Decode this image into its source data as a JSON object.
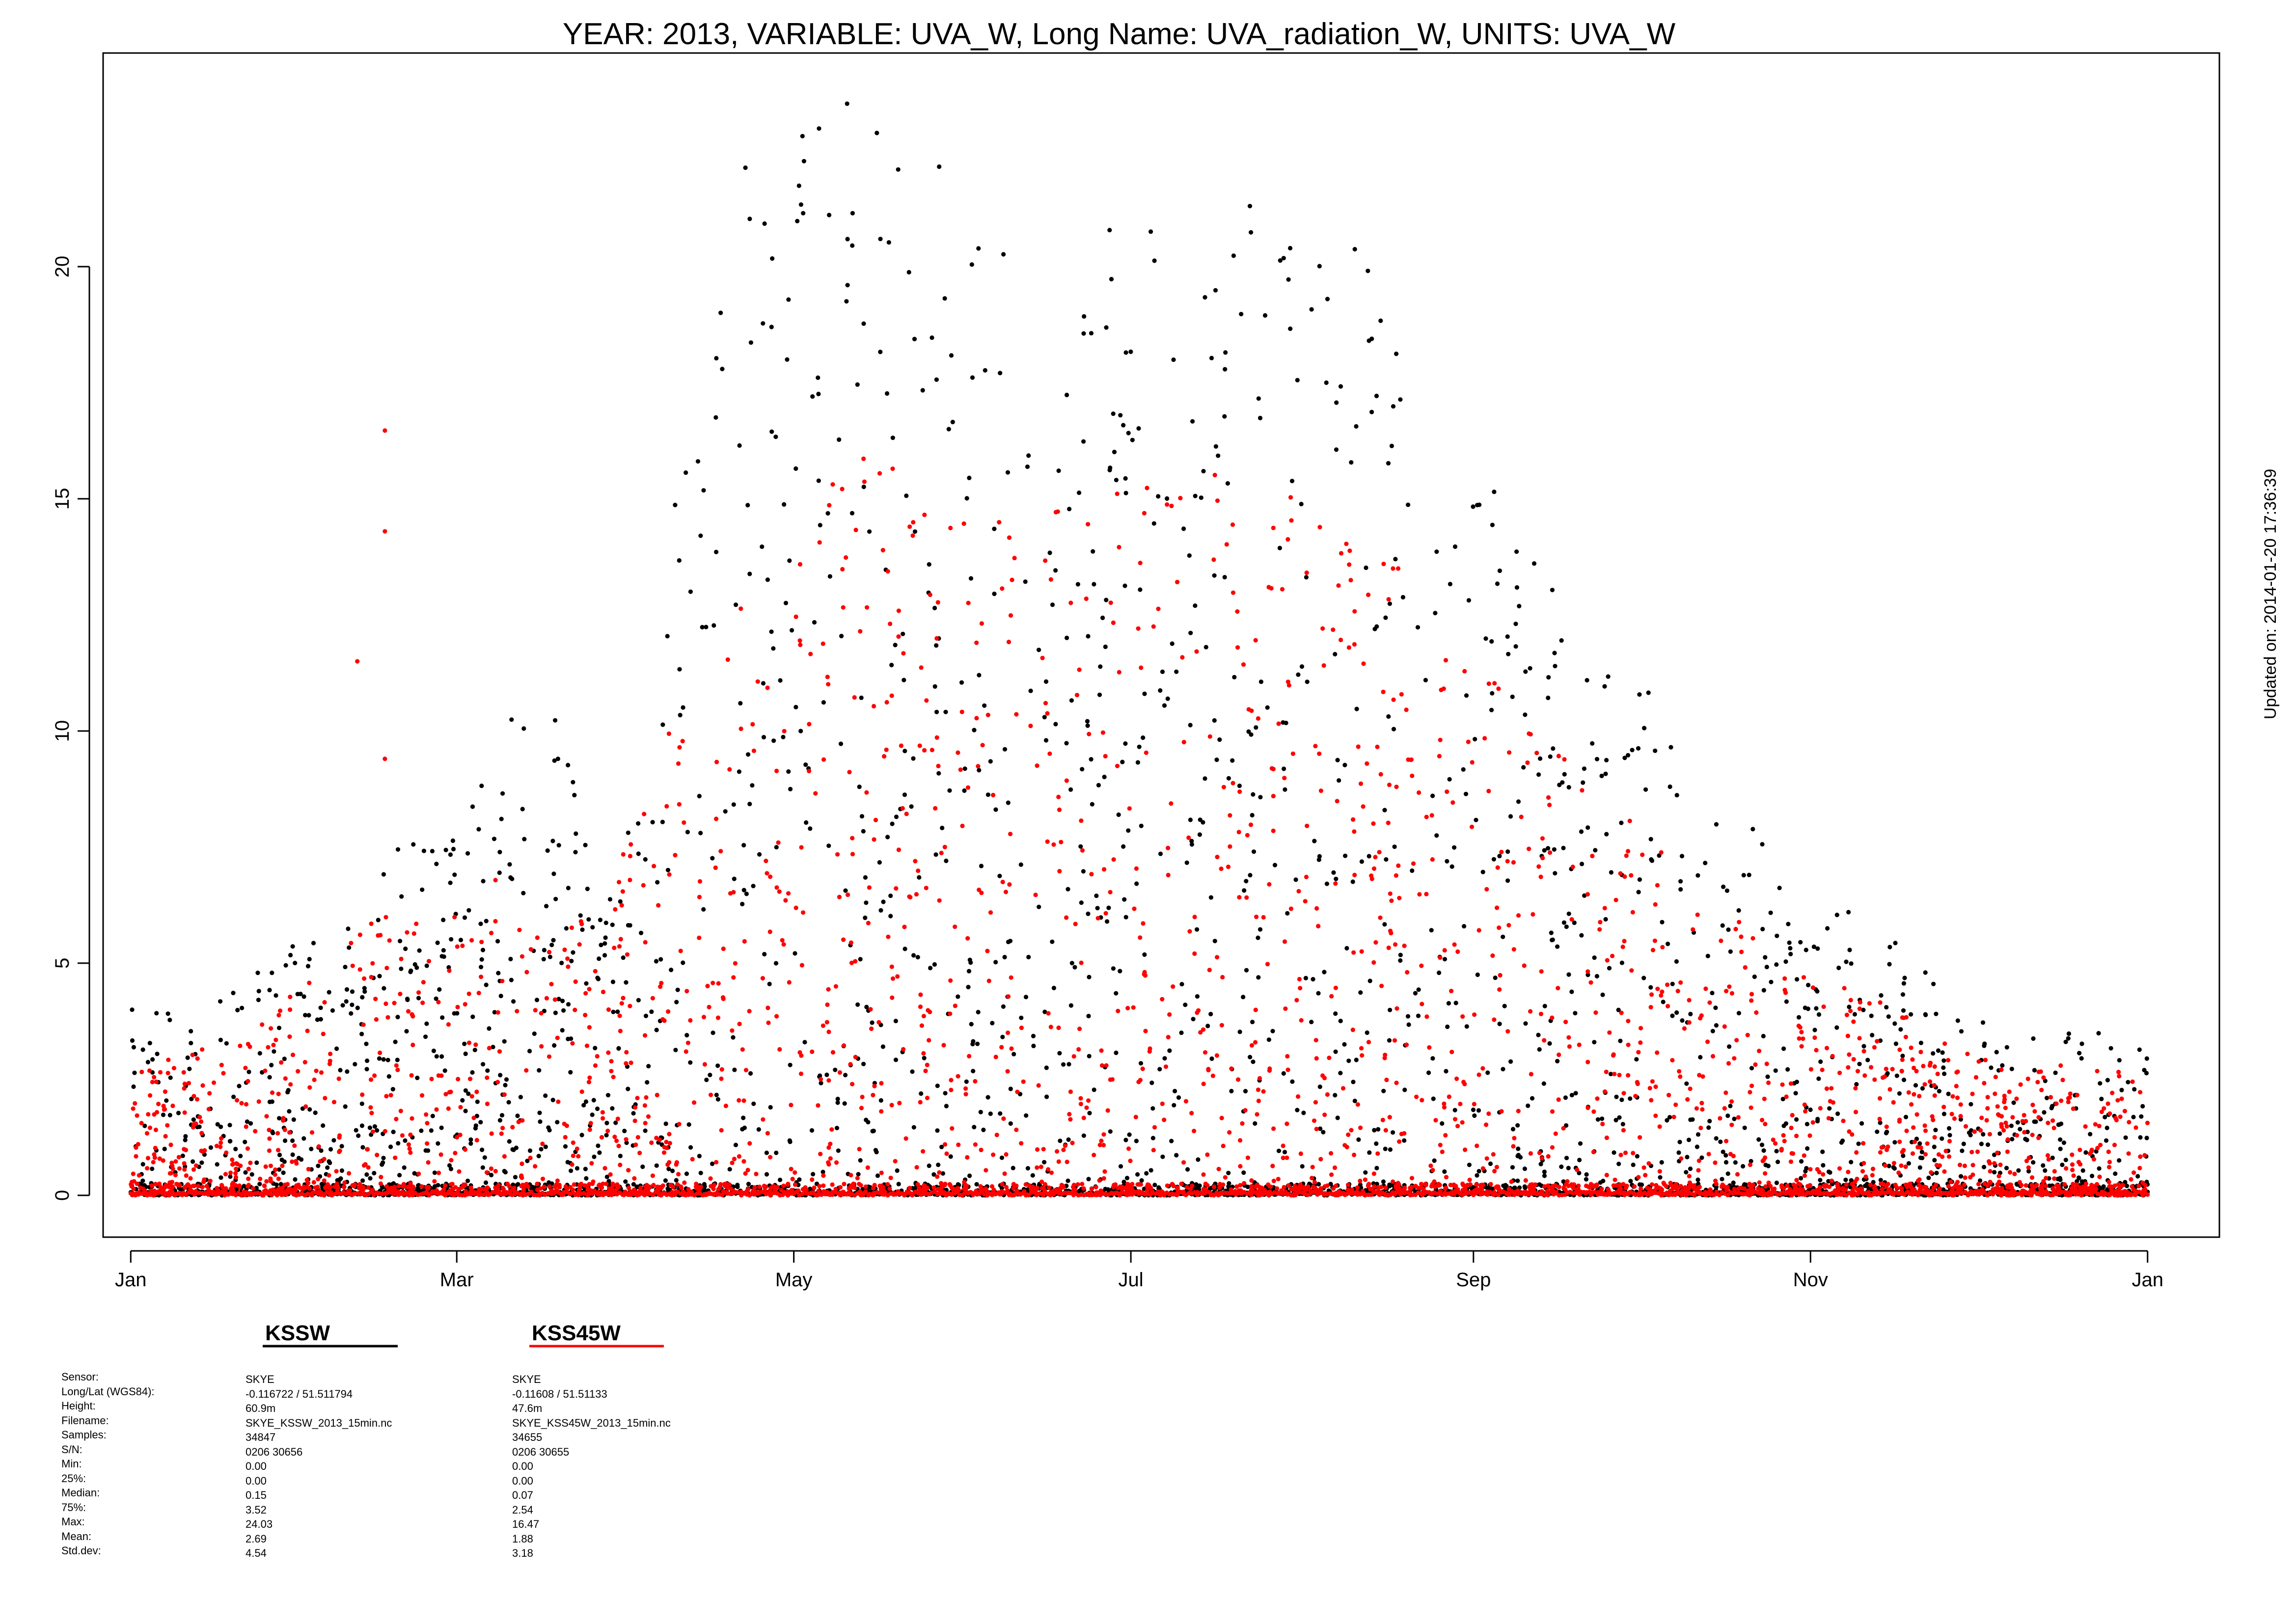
{
  "chart_data": {
    "type": "scatter",
    "title": "YEAR: 2013, VARIABLE: UVA_W, Long Name: UVA_radiation_W, UNITS: UVA_W",
    "xlabel": "",
    "ylabel": "",
    "side_note": "Updated on: 2014-01-20 17:36:39",
    "x_ticks": [
      "Jan",
      "Mar",
      "May",
      "Jul",
      "Sep",
      "Nov",
      "Jan"
    ],
    "x_tick_days": [
      0,
      59,
      120,
      181,
      243,
      304,
      365
    ],
    "xlim_days": [
      -5,
      378
    ],
    "y_ticks": [
      0,
      5,
      10,
      15,
      20
    ],
    "ylim": [
      -0.9,
      24.6
    ],
    "grid": false,
    "legend_placement": "below-left",
    "series": [
      {
        "name": "KSSW",
        "color": "#000000",
        "envelope": {
          "day": [
            0,
            10,
            20,
            30,
            40,
            48,
            55,
            65,
            75,
            85,
            90,
            95,
            100,
            105,
            110,
            118,
            125,
            135,
            145,
            152,
            160,
            170,
            181,
            190,
            200,
            210,
            220,
            230,
            240,
            250,
            260,
            270,
            280,
            290,
            300,
            310,
            320,
            330,
            340,
            350,
            360,
            365
          ],
          "max": [
            4.0,
            4.0,
            4.5,
            5.5,
            6.6,
            7.8,
            8.1,
            9.3,
            11.9,
            6.0,
            8.0,
            10.0,
            18.9,
            20.3,
            22.0,
            23.0,
            24.0,
            23.0,
            22.7,
            22.4,
            20.0,
            19.0,
            22.0,
            21.2,
            21.5,
            21.0,
            20.5,
            20.0,
            17.5,
            14.5,
            12.8,
            11.6,
            10.0,
            8.5,
            7.2,
            6.5,
            5.4,
            4.2,
            3.6,
            3.5,
            3.6,
            3.0
          ]
        }
      },
      {
        "name": "KSS45W",
        "color": "#ff0000",
        "envelope": {
          "day": [
            0,
            10,
            20,
            30,
            40,
            44,
            48,
            55,
            65,
            75,
            85,
            90,
            95,
            100,
            105,
            110,
            120,
            130,
            145,
            152,
            160,
            170,
            181,
            190,
            200,
            210,
            220,
            230,
            240,
            250,
            260,
            270,
            280,
            290,
            300,
            310,
            320,
            330,
            340,
            350,
            360,
            365
          ],
          "max": [
            2.8,
            3.0,
            3.5,
            4.5,
            5.5,
            7.0,
            6.5,
            5.8,
            7.0,
            7.5,
            6.0,
            8.7,
            10.5,
            11.0,
            12.0,
            13.0,
            14.0,
            15.9,
            15.8,
            15.0,
            14.5,
            15.0,
            15.2,
            15.5,
            15.8,
            15.5,
            14.8,
            14.0,
            12.5,
            11.0,
            10.0,
            8.5,
            7.0,
            6.0,
            5.0,
            4.6,
            4.0,
            3.2,
            2.8,
            2.8,
            2.9,
            2.6
          ]
        },
        "outliers": [
          {
            "day": 41,
            "y": 11.5
          },
          {
            "day": 46,
            "y": 16.47
          },
          {
            "day": 46,
            "y": 14.3
          },
          {
            "day": 46,
            "y": 9.4
          }
        ]
      }
    ],
    "legend": {
      "row_labels": [
        "Sensor:",
        "Long/Lat (WGS84):",
        "Height:",
        "Filename:",
        "Samples:",
        "S/N:",
        "Min:",
        "25%:",
        "Median:",
        "75%:",
        "Max:",
        "Mean:",
        "Std.dev:"
      ],
      "kssw": [
        "SKYE",
        "-0.116722 / 51.511794",
        "60.9m",
        "SKYE_KSSW_2013_15min.nc",
        "34847",
        "0206 30656",
        "0.00",
        "0.00",
        "0.15",
        "3.52",
        "24.03",
        "2.69",
        "4.54"
      ],
      "kss45w": [
        "SKYE",
        "-0.11608 / 51.51133",
        "47.6m",
        "SKYE_KSS45W_2013_15min.nc",
        "34655",
        "0206 30655",
        "0.00",
        "0.00",
        "0.07",
        "2.54",
        "16.47",
        "1.88",
        "3.18"
      ]
    }
  }
}
